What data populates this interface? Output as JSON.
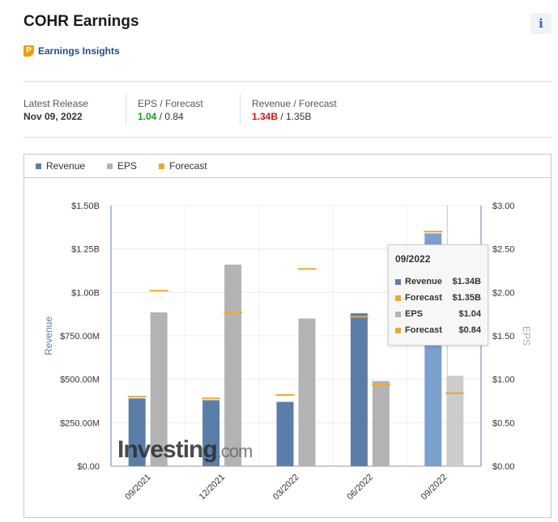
{
  "header": {
    "title": "COHR Earnings",
    "info_icon": "i",
    "insights_icon": "P",
    "insights_label": "Earnings Insights"
  },
  "stats": {
    "latest_release_label": "Latest Release",
    "latest_release_value": "Nov 09, 2022",
    "eps_label": "EPS / Forecast",
    "eps_actual": "1.04",
    "eps_sep": " / ",
    "eps_forecast": "0.84",
    "revenue_label": "Revenue / Forecast",
    "revenue_actual": "1.34B",
    "revenue_sep": " / ",
    "revenue_forecast": "1.35B"
  },
  "colors": {
    "revenue": "#5b7ea9",
    "revenue_highlight": "#7ba0cd",
    "eps": "#b3b3b3",
    "eps_highlight": "#cccccc",
    "forecast": "#f0a830",
    "eps_good": "#1a9b1a",
    "revenue_bad": "#e01010"
  },
  "legend": [
    {
      "label": "Revenue",
      "color": "#5b7ea9"
    },
    {
      "label": "EPS",
      "color": "#b3b3b3"
    },
    {
      "label": "Forecast",
      "color": "#f0a830"
    }
  ],
  "chart_data": {
    "type": "bar",
    "categories": [
      "09/2021",
      "12/2021",
      "03/2022",
      "06/2022",
      "09/2022"
    ],
    "series": [
      {
        "name": "Revenue",
        "axis": "left",
        "values": [
          0.39,
          0.38,
          0.37,
          0.88,
          1.34
        ]
      },
      {
        "name": "Revenue Forecast",
        "axis": "left",
        "values": [
          0.4,
          0.39,
          0.41,
          0.86,
          1.35
        ]
      },
      {
        "name": "EPS",
        "axis": "right",
        "values": [
          1.77,
          2.32,
          1.7,
          0.98,
          1.04
        ]
      },
      {
        "name": "EPS Forecast",
        "axis": "right",
        "values": [
          2.02,
          1.77,
          2.27,
          0.94,
          0.84
        ]
      }
    ],
    "ylabel_left": "Revenue",
    "ylabel_right": "EPS",
    "ylim_left": [
      0,
      1.5
    ],
    "ylim_right": [
      0,
      3.0
    ],
    "left_ticks": [
      "$0.00",
      "$250.00M",
      "$500.00M",
      "$750.00M",
      "$1.00B",
      "$1.25B",
      "$1.50B"
    ],
    "right_ticks": [
      "$0.00",
      "$0.50",
      "$1.00",
      "$1.50",
      "$2.00",
      "$2.50",
      "$3.00"
    ],
    "highlighted_category": "09/2022",
    "watermark_brand": "Investing",
    "watermark_suffix": ".com"
  },
  "tooltip": {
    "title": "09/2022",
    "rows": [
      {
        "name": "Revenue",
        "value": "$1.34B",
        "color": "#5b7ea9"
      },
      {
        "name": "Forecast",
        "value": "$1.35B",
        "color": "#f0a830"
      },
      {
        "name": "EPS",
        "value": "$1.04",
        "color": "#b3b3b3"
      },
      {
        "name": "Forecast",
        "value": "$0.84",
        "color": "#f0a830"
      }
    ]
  }
}
